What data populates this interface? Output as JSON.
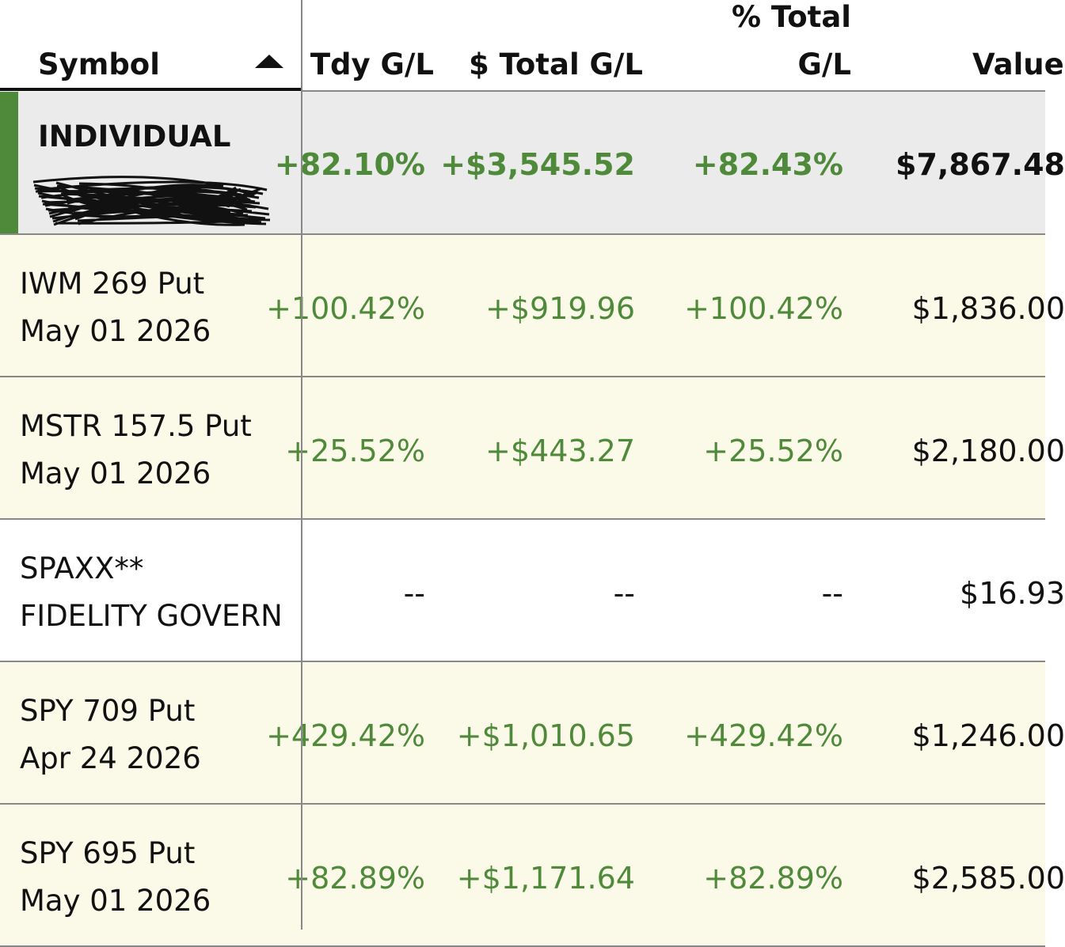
{
  "header": {
    "symbol": "Symbol",
    "tdy": "Tdy G/L",
    "total": "$ Total G/L",
    "pct": [
      "% Total",
      "G/L"
    ],
    "value": "Value"
  },
  "account": {
    "name": "INDIVIDUAL",
    "tdy": "+82.10%",
    "total": "+$3,545.52",
    "pct": "+82.43%",
    "value": "$7,867.48"
  },
  "rows": [
    {
      "line1": "IWM 269 Put",
      "line2": "May 01 2026",
      "tdy": "+100.42%",
      "total": "+$919.96",
      "pct": "+100.42%",
      "value": "$1,836.00"
    },
    {
      "line1": "MSTR 157.5 Put",
      "line2": "May 01 2026",
      "tdy": "+25.52%",
      "total": "+$443.27",
      "pct": "+25.52%",
      "value": "$2,180.00"
    },
    {
      "line1": "SPAXX**",
      "line2": "FIDELITY GOVERN",
      "tdy": "--",
      "total": "--",
      "pct": "--",
      "value": "$16.93"
    },
    {
      "line1": "SPY 709 Put",
      "line2": "Apr 24 2026",
      "tdy": "+429.42%",
      "total": "+$1,010.65",
      "pct": "+429.42%",
      "value": "$1,246.00"
    },
    {
      "line1": "SPY 695 Put",
      "line2": "May 01 2026",
      "tdy": "+82.89%",
      "total": "+$1,171.64",
      "pct": "+82.89%",
      "value": "$2,585.00"
    }
  ]
}
